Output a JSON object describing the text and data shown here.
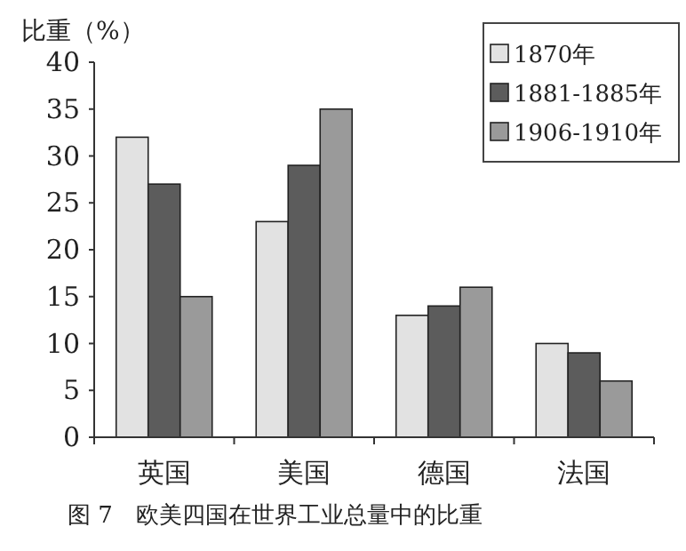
{
  "chart_data": {
    "type": "bar",
    "title": "图 7　欧美四国在世界工业总量中的比重",
    "ylabel": "比重（%）",
    "categories": [
      "英国",
      "美国",
      "德国",
      "法国"
    ],
    "series": [
      {
        "name": "1870年",
        "color": "#e2e2e2",
        "values": [
          32,
          23,
          13,
          10
        ]
      },
      {
        "name": "1881-1885年",
        "color": "#5c5c5c",
        "values": [
          27,
          29,
          14,
          9
        ]
      },
      {
        "name": "1906-1910年",
        "color": "#9a9a9a",
        "values": [
          15,
          35,
          16,
          6
        ]
      }
    ],
    "ylim": [
      0,
      40
    ],
    "yticks": [
      0,
      5,
      10,
      15,
      20,
      25,
      30,
      35,
      40
    ],
    "grid": false,
    "legend": "top right"
  }
}
